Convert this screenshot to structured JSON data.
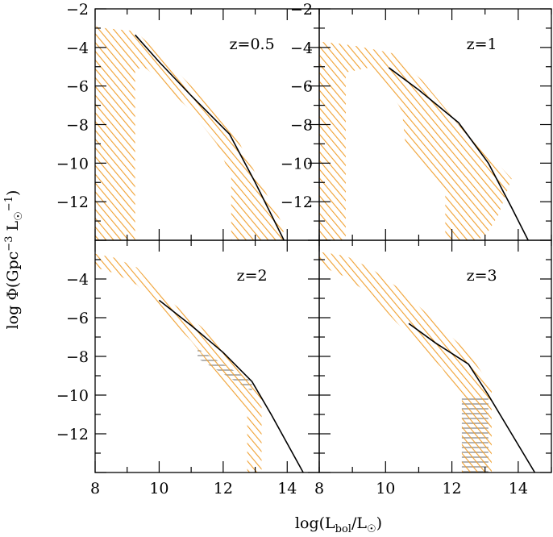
{
  "chart_data": {
    "type": "line",
    "layout": "2x2 grid of panels sharing axes",
    "xlabel_parts": {
      "prefix": "log(L",
      "sub": "bol",
      "mid": "/L",
      "sun": "☉",
      "suffix": ")"
    },
    "ylabel_parts": {
      "prefix": "log Φ(Gpc",
      "sup": "−3",
      "mid": " L",
      "sun": "☉",
      "sup2": "−1",
      "suffix": ")"
    },
    "xlim": [
      8,
      15
    ],
    "xticks_major": [
      8,
      10,
      12,
      14
    ],
    "xtick_labels": [
      "8",
      "10",
      "12",
      "14"
    ],
    "colors": {
      "band": "#f0a030",
      "band_grey": "#a0a0a0",
      "line": "#000000",
      "frame": "#000000"
    },
    "panels": [
      {
        "label": "z=0.5",
        "ylim": [
          -14,
          -2
        ],
        "ytick_labels": [
          "−2",
          "−4",
          "−6",
          "−8",
          "−10",
          "−12"
        ],
        "yticks": [
          -2,
          -4,
          -6,
          -8,
          -10,
          -12
        ],
        "model_line": {
          "x": [
            9.25,
            10.0,
            11.0,
            12.2,
            13.0,
            13.9
          ],
          "y": [
            -3.35,
            -4.75,
            -6.5,
            -8.5,
            -11.0,
            -14.0
          ]
        },
        "band": [
          {
            "x": [
              8.0,
              8.3,
              8.6,
              9.25,
              10.0,
              11.0,
              12.2,
              13.0,
              13.9,
              13.85,
              12.85,
              12.25,
              12.25,
              11.8,
              11.0,
              10.0,
              9.6,
              9.25,
              9.25,
              8.0
            ],
            "y": [
              -2.9,
              -3.0,
              -3.05,
              -3.15,
              -4.3,
              -6.0,
              -8.0,
              -10.5,
              -13.3,
              -14.0,
              -14.0,
              -14.0,
              -10.7,
              -9.0,
              -7.3,
              -5.7,
              -5.1,
              -5.1,
              -14.0,
              -14.0
            ]
          }
        ]
      },
      {
        "label": "z=1",
        "ylim": [
          -14,
          -2
        ],
        "ytick_labels": [
          "−2",
          "−4",
          "−6",
          "−8",
          "−10",
          "−12"
        ],
        "yticks": [
          -2,
          -4,
          -6,
          -8,
          -10,
          -12
        ],
        "model_line": {
          "x": [
            10.1,
            11.0,
            12.2,
            13.1,
            13.8,
            14.3
          ],
          "y": [
            -5.05,
            -6.2,
            -7.9,
            -10.0,
            -12.3,
            -14.0
          ]
        },
        "band": [
          {
            "x": [
              8.0,
              8.6,
              9.2,
              10.2,
              11.1,
              12.2,
              13.1,
              13.8,
              13.4,
              13.0,
              12.7,
              11.8,
              11.8,
              11.0,
              10.6,
              10.5,
              10.0,
              9.5,
              8.8,
              8.8,
              8.0
            ],
            "y": [
              -3.7,
              -3.8,
              -3.95,
              -4.3,
              -5.7,
              -8.0,
              -9.5,
              -10.8,
              -12.7,
              -13.8,
              -14.0,
              -14.0,
              -11.4,
              -9.9,
              -9.1,
              -7.3,
              -5.9,
              -5.05,
              -5.3,
              -14.0,
              -14.0
            ]
          }
        ]
      },
      {
        "label": "z=2",
        "ylim": [
          -14,
          -2
        ],
        "ytick_labels": [
          "−4",
          "−6",
          "−8",
          "−10",
          "−12"
        ],
        "yticks": [
          -4,
          -6,
          -8,
          -10,
          -12
        ],
        "model_line": {
          "x": [
            10.0,
            11.0,
            12.0,
            12.9,
            13.5,
            14.0,
            14.5
          ],
          "y": [
            -5.1,
            -6.4,
            -7.8,
            -9.3,
            -11.0,
            -12.5,
            -14.0
          ]
        },
        "band": [
          {
            "x": [
              8.0,
              8.6,
              9.3,
              10.0,
              11.0,
              12.0,
              12.9,
              13.2,
              13.2,
              12.75,
              12.75,
              12.0,
              11.0,
              10.0,
              9.3,
              8.6,
              8.0
            ],
            "y": [
              -2.7,
              -2.9,
              -3.4,
              -4.7,
              -6.0,
              -7.5,
              -9.2,
              -10.2,
              -14.0,
              -14.0,
              -10.8,
              -9.3,
              -7.2,
              -5.5,
              -4.3,
              -3.7,
              -3.4
            ]
          }
        ],
        "grey_band": {
          "x": [
            11.2,
            12.9,
            12.9,
            11.2
          ],
          "y": [
            -7.6,
            -9.3,
            -9.8,
            -8.1
          ]
        }
      },
      {
        "label": "z=3",
        "ylim": [
          -14,
          -2
        ],
        "ytick_labels": [],
        "yticks": [
          -4,
          -6,
          -8,
          -10,
          -12
        ],
        "model_line": {
          "x": [
            10.7,
            11.5,
            12.5,
            13.1,
            13.8,
            14.5
          ],
          "y": [
            -6.3,
            -7.3,
            -8.4,
            -10.0,
            -12.0,
            -14.0
          ]
        },
        "band": [
          {
            "x": [
              8.0,
              8.8,
              9.6,
              10.5,
              11.5,
              12.5,
              13.2,
              13.2,
              12.3,
              12.3,
              11.7,
              11.0,
              10.3,
              9.6,
              8.8,
              8.0
            ],
            "y": [
              -2.6,
              -2.8,
              -3.5,
              -4.6,
              -6.2,
              -7.8,
              -9.6,
              -14.0,
              -14.0,
              -10.1,
              -8.6,
              -7.4,
              -6.2,
              -4.9,
              -3.9,
              -3.3
            ]
          }
        ],
        "grey_band": {
          "x": [
            12.3,
            13.1,
            13.1,
            12.3
          ],
          "y": [
            -10.1,
            -10.1,
            -14.0,
            -14.0
          ]
        }
      }
    ]
  }
}
